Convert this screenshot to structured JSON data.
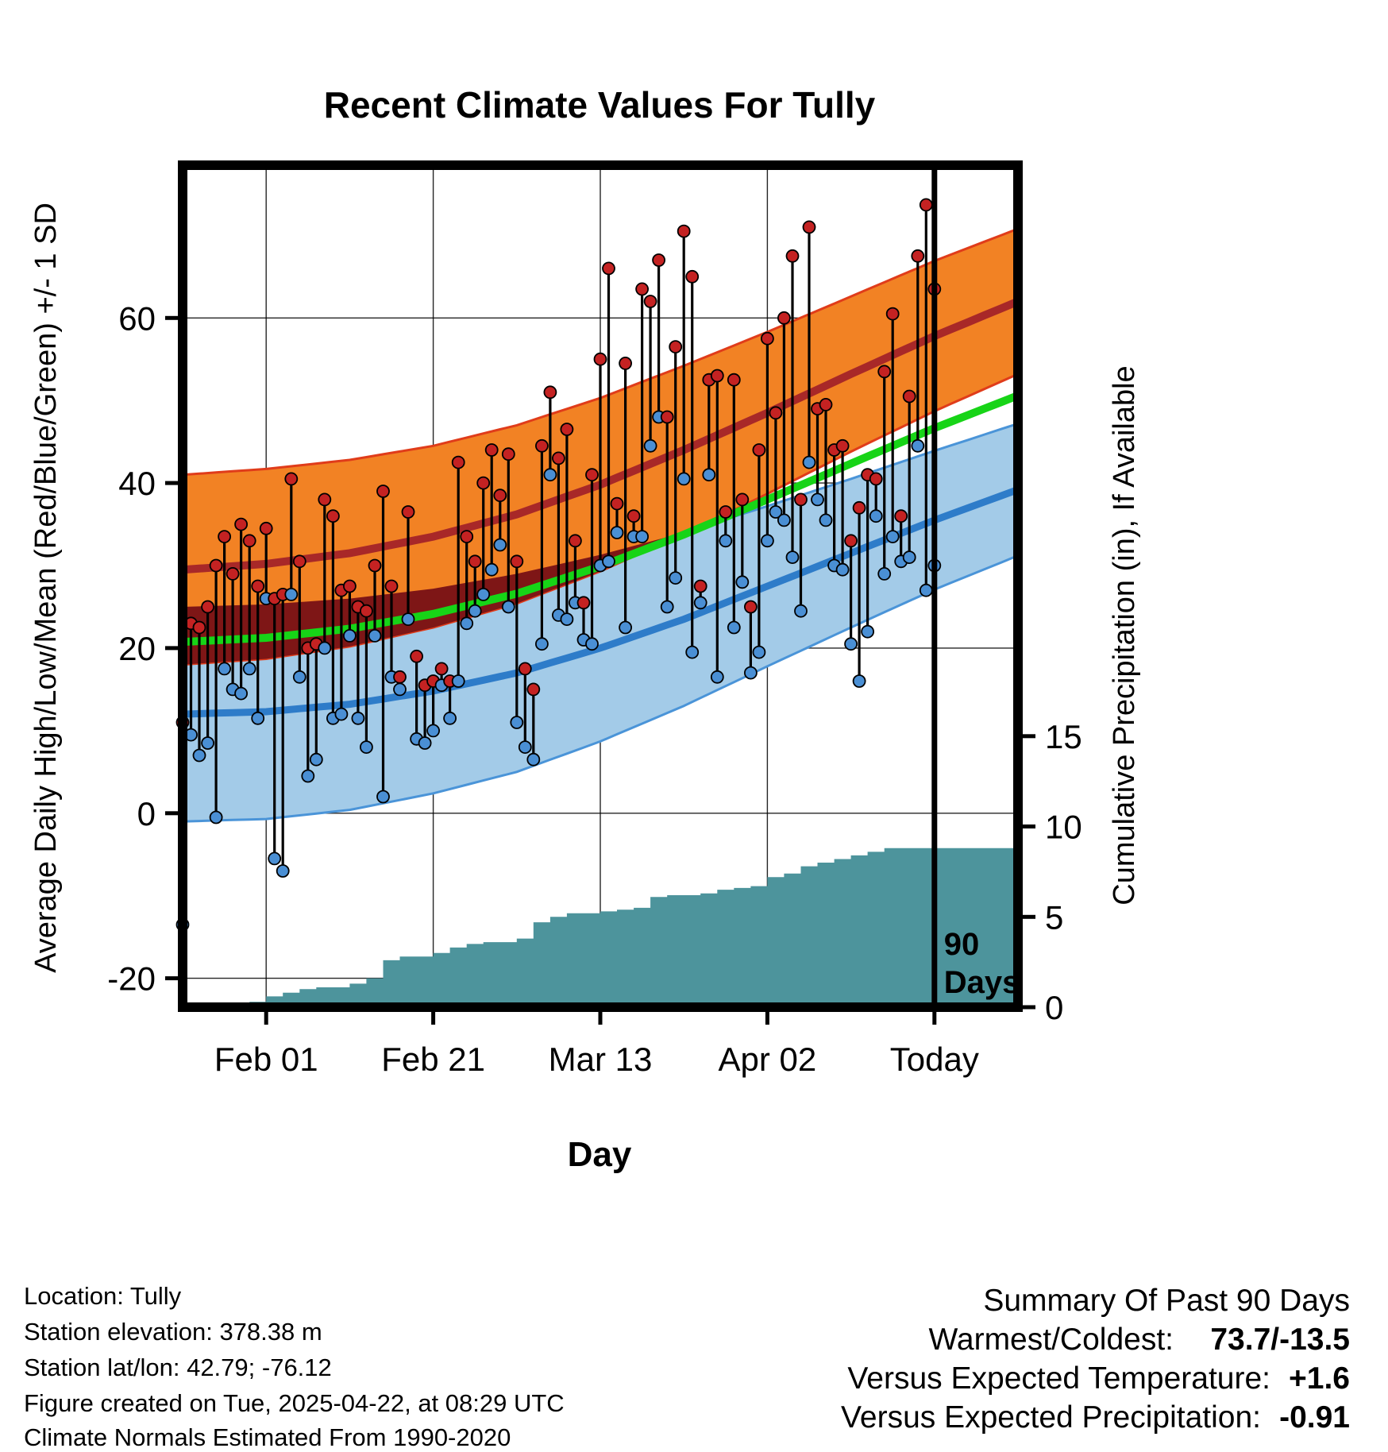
{
  "chart_data": {
    "type": "line",
    "subtype": "climate-bands-with-daily-scatter-and-cumulative-precip",
    "title": "Recent Climate Values For Tully",
    "xlabel": "Day",
    "ylabel_left": "Average Daily High/Low/Mean (Red/Blue/Green) +/- 1 SD",
    "ylabel_right": "Cumulative Precipitation (in), If Available",
    "x_range": [
      0,
      100
    ],
    "y_left_range": [
      -23.5,
      78.5
    ],
    "y_right_range": [
      0,
      46.6
    ],
    "x_ticks": [
      {
        "day": 10,
        "label": "Feb 01"
      },
      {
        "day": 30,
        "label": "Feb 21"
      },
      {
        "day": 50,
        "label": "Mar 13"
      },
      {
        "day": 70,
        "label": "Apr 02"
      },
      {
        "day": 90,
        "label": "Today"
      }
    ],
    "y_left_ticks": [
      -20,
      0,
      20,
      40,
      60
    ],
    "y_right_ticks": [
      0,
      5,
      10,
      15
    ],
    "overlay": {
      "day": 90,
      "label_lines": [
        "90",
        "Days"
      ]
    },
    "climatology": {
      "days": [
        0,
        10,
        20,
        30,
        40,
        50,
        60,
        70,
        80,
        90,
        100
      ],
      "high_mean": [
        29.5,
        30.2,
        31.5,
        33.5,
        36.2,
        39.8,
        44.0,
        48.5,
        53.2,
        57.8,
        62.0
      ],
      "high_sd": [
        11.5,
        11.5,
        11.3,
        11.0,
        10.8,
        10.5,
        10.2,
        9.8,
        9.4,
        9.1,
        8.8
      ],
      "low_mean": [
        12.0,
        12.3,
        13.2,
        14.8,
        17.0,
        20.0,
        23.5,
        27.5,
        31.5,
        35.5,
        39.2
      ],
      "low_sd": [
        13.0,
        13.0,
        12.8,
        12.4,
        12.0,
        11.3,
        10.5,
        9.7,
        9.0,
        8.4,
        8.0
      ]
    },
    "observations": [
      [
        0,
        11,
        -13.5
      ],
      [
        1,
        23,
        9.5
      ],
      [
        2,
        22.5,
        7
      ],
      [
        3,
        25,
        8.5
      ],
      [
        4,
        30,
        -0.5
      ],
      [
        5,
        33.5,
        17.5
      ],
      [
        6,
        29,
        15
      ],
      [
        7,
        35,
        14.5
      ],
      [
        8,
        33,
        17.5
      ],
      [
        9,
        27.5,
        11.5
      ],
      [
        10,
        34.5,
        26
      ],
      [
        11,
        26,
        -5.5
      ],
      [
        12,
        26.5,
        -7
      ],
      [
        13,
        40.5,
        26.5
      ],
      [
        14,
        30.5,
        16.5
      ],
      [
        15,
        20,
        4.5
      ],
      [
        16,
        20.5,
        6.5
      ],
      [
        17,
        38,
        20
      ],
      [
        18,
        36,
        11.5
      ],
      [
        19,
        27,
        12
      ],
      [
        20,
        27.5,
        21.5
      ],
      [
        21,
        25,
        11.5
      ],
      [
        22,
        24.5,
        8
      ],
      [
        23,
        30,
        21.5
      ],
      [
        24,
        39,
        2
      ],
      [
        25,
        27.5,
        16.5
      ],
      [
        26,
        16.5,
        15
      ],
      [
        27,
        36.5,
        23.5
      ],
      [
        28,
        19,
        9
      ],
      [
        29,
        15.5,
        8.5
      ],
      [
        30,
        16,
        10
      ],
      [
        31,
        17.5,
        15.5
      ],
      [
        32,
        16,
        11.5
      ],
      [
        33,
        42.5,
        16
      ],
      [
        34,
        33.5,
        23
      ],
      [
        35,
        30.5,
        24.5
      ],
      [
        36,
        40,
        26.5
      ],
      [
        37,
        44,
        29.5
      ],
      [
        38,
        38.5,
        32.5
      ],
      [
        39,
        43.5,
        25
      ],
      [
        40,
        30.5,
        11
      ],
      [
        41,
        17.5,
        8
      ],
      [
        42,
        15,
        6.5
      ],
      [
        43,
        44.5,
        20.5
      ],
      [
        44,
        51,
        41
      ],
      [
        45,
        43,
        24
      ],
      [
        46,
        46.5,
        23.5
      ],
      [
        47,
        33,
        25.5
      ],
      [
        48,
        25.5,
        21
      ],
      [
        49,
        41,
        20.5
      ],
      [
        50,
        55,
        30
      ],
      [
        51,
        66,
        30.5
      ],
      [
        52,
        37.5,
        34
      ],
      [
        53,
        54.5,
        22.5
      ],
      [
        54,
        36,
        33.5
      ],
      [
        55,
        63.5,
        33.5
      ],
      [
        56,
        62,
        44.5
      ],
      [
        57,
        67,
        48
      ],
      [
        58,
        48,
        25
      ],
      [
        59,
        56.5,
        28.5
      ],
      [
        60,
        70.5,
        40.5
      ],
      [
        61,
        65,
        19.5
      ],
      [
        62,
        27.5,
        25.5
      ],
      [
        63,
        52.5,
        41
      ],
      [
        64,
        53,
        16.5
      ],
      [
        65,
        36.5,
        33
      ],
      [
        66,
        52.5,
        22.5
      ],
      [
        67,
        38,
        28
      ],
      [
        68,
        25,
        17
      ],
      [
        69,
        44,
        19.5
      ],
      [
        70,
        57.5,
        33
      ],
      [
        71,
        48.5,
        36.5
      ],
      [
        72,
        60,
        35.5
      ],
      [
        73,
        67.5,
        31
      ],
      [
        74,
        38,
        24.5
      ],
      [
        75,
        71,
        42.5
      ],
      [
        76,
        49,
        38
      ],
      [
        77,
        49.5,
        35.5
      ],
      [
        78,
        44,
        30
      ],
      [
        79,
        44.5,
        29.5
      ],
      [
        80,
        33,
        20.5
      ],
      [
        81,
        37,
        16
      ],
      [
        82,
        41,
        22
      ],
      [
        83,
        40.5,
        36
      ],
      [
        84,
        53.5,
        29
      ],
      [
        85,
        60.5,
        33.5
      ],
      [
        86,
        36,
        30.5
      ],
      [
        87,
        50.5,
        31
      ],
      [
        88,
        67.5,
        44.5
      ],
      [
        89,
        73.7,
        27
      ],
      [
        90,
        63.5,
        30
      ]
    ],
    "precip_cumulative": [
      [
        6,
        0
      ],
      [
        8,
        0.3
      ],
      [
        10,
        0.6
      ],
      [
        12,
        0.8
      ],
      [
        14,
        1.0
      ],
      [
        16,
        1.1
      ],
      [
        20,
        1.3
      ],
      [
        22,
        1.6
      ],
      [
        24,
        2.6
      ],
      [
        26,
        2.8
      ],
      [
        30,
        3.0
      ],
      [
        32,
        3.3
      ],
      [
        34,
        3.5
      ],
      [
        36,
        3.6
      ],
      [
        40,
        3.8
      ],
      [
        42,
        4.7
      ],
      [
        44,
        5.0
      ],
      [
        46,
        5.2
      ],
      [
        50,
        5.3
      ],
      [
        52,
        5.4
      ],
      [
        54,
        5.5
      ],
      [
        56,
        6.1
      ],
      [
        58,
        6.2
      ],
      [
        62,
        6.3
      ],
      [
        64,
        6.5
      ],
      [
        66,
        6.6
      ],
      [
        68,
        6.7
      ],
      [
        70,
        7.2
      ],
      [
        72,
        7.4
      ],
      [
        74,
        7.8
      ],
      [
        76,
        8.0
      ],
      [
        78,
        8.2
      ],
      [
        80,
        8.4
      ],
      [
        82,
        8.6
      ],
      [
        84,
        8.8
      ],
      [
        100,
        8.8
      ]
    ],
    "colors": {
      "high_band": "#f28224",
      "high_edge": "#e03c1a",
      "high_mean_line": "#a82828",
      "overlap_fill": "#7e1616",
      "low_band": "#a3cbe8",
      "low_edge": "#4a94d8",
      "low_mean_line": "#2e7cc9",
      "mean_line": "#17d417",
      "precip_fill": "#4d949c",
      "stem": "#000000",
      "dot_high": "#c42222",
      "dot_low": "#4a8fd4",
      "temp_delta": "#d93025",
      "precip_delta": "#b0352a"
    }
  },
  "footer": {
    "lines": [
      "Location: Tully",
      "Station elevation: 378.38 m",
      "Station lat/lon: 42.79; -76.12",
      "Figure created on Tue, 2025-04-22, at 08:29 UTC",
      "Climate Normals Estimated From 1990-2020"
    ]
  },
  "summary": {
    "heading": "Summary Of Past 90 Days",
    "warmest_label": "Warmest/Coldest:",
    "warmest_value": "73.7/-13.5",
    "temp_label": "Versus Expected Temperature:",
    "temp_value": "+1.6",
    "precip_label": "Versus Expected Precipitation:",
    "precip_value": "-0.91"
  }
}
